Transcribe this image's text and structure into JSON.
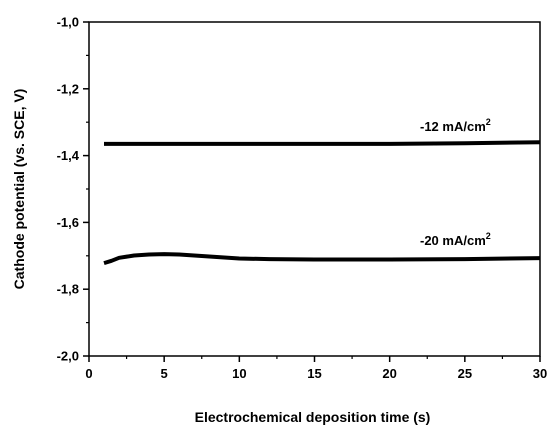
{
  "chart_data": {
    "type": "line",
    "title": "",
    "xlabel": "Electrochemical deposition time (s)",
    "ylabel": "Cathode potential  (vs. SCE, V)",
    "xlim": [
      0,
      30
    ],
    "ylim": [
      -2.0,
      -1.0
    ],
    "x_ticks": [
      "0",
      "5",
      "10",
      "15",
      "20",
      "25",
      "30"
    ],
    "y_ticks": [
      "-1,0",
      "-1,2",
      "-1,4",
      "-1,6",
      "-1,8",
      "-2,0"
    ],
    "grid": false,
    "legend": "none",
    "line_color": "#000000",
    "series": [
      {
        "label_text": "-12 mA/cm",
        "label_sup": "2",
        "points": [
          [
            1,
            -1.365
          ],
          [
            5,
            -1.365
          ],
          [
            10,
            -1.365
          ],
          [
            15,
            -1.365
          ],
          [
            20,
            -1.365
          ],
          [
            25,
            -1.363
          ],
          [
            30,
            -1.36
          ]
        ]
      },
      {
        "label_text": "-20 mA/cm",
        "label_sup": "2",
        "points": [
          [
            1,
            -1.722
          ],
          [
            1.5,
            -1.715
          ],
          [
            2,
            -1.706
          ],
          [
            3,
            -1.699
          ],
          [
            4,
            -1.696
          ],
          [
            5,
            -1.695
          ],
          [
            6,
            -1.696
          ],
          [
            8,
            -1.702
          ],
          [
            10,
            -1.708
          ],
          [
            12,
            -1.71
          ],
          [
            15,
            -1.711
          ],
          [
            20,
            -1.711
          ],
          [
            25,
            -1.71
          ],
          [
            30,
            -1.707
          ]
        ]
      }
    ]
  }
}
